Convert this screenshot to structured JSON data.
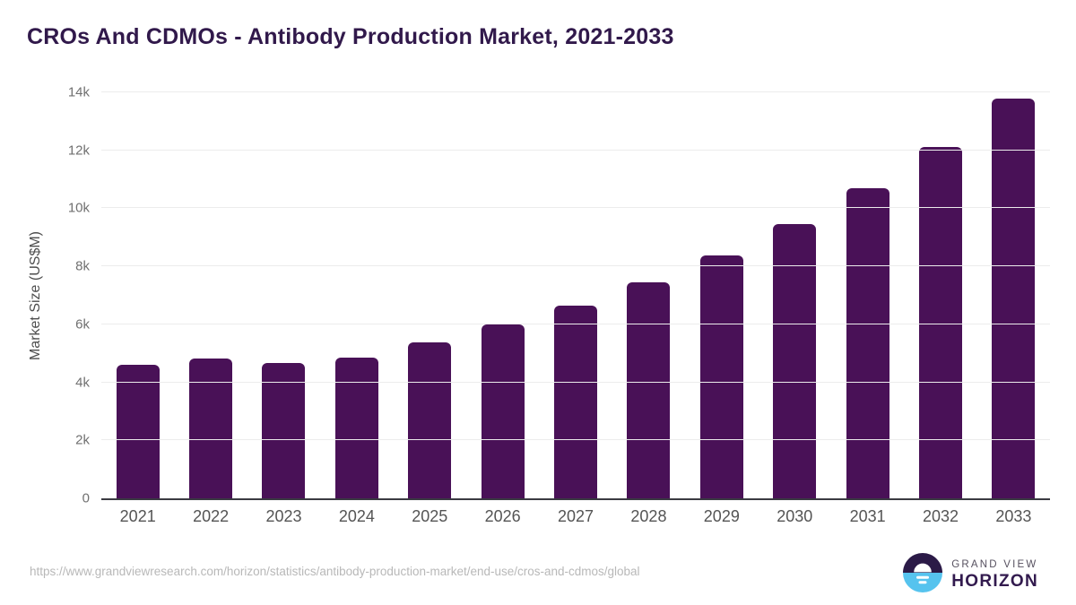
{
  "chart_data": {
    "type": "bar",
    "title": "CROs And CDMOs - Antibody Production Market, 2021-2033",
    "categories": [
      "2021",
      "2022",
      "2023",
      "2024",
      "2025",
      "2026",
      "2027",
      "2028",
      "2029",
      "2030",
      "2031",
      "2032",
      "2033"
    ],
    "values": [
      4620,
      4830,
      4680,
      4860,
      5390,
      6000,
      6650,
      7450,
      8390,
      9470,
      10680,
      12100,
      13780
    ],
    "xlabel": "",
    "ylabel": "Market Size (US$M)",
    "ylim": [
      0,
      14000
    ],
    "yticks": [
      0,
      2000,
      4000,
      6000,
      8000,
      10000,
      12000,
      14000
    ],
    "ytick_labels": [
      "0",
      "2k",
      "4k",
      "6k",
      "8k",
      "10k",
      "12k",
      "14k"
    ],
    "grid": "horizontal",
    "legend": "none",
    "bar_color": "#491157"
  },
  "colors": {
    "bar": "#491157",
    "title": "#31194b",
    "gridline": "#ececec",
    "axis_line": "#3a3a42",
    "tick_label": "#707070",
    "x_label": "#545454",
    "url_text": "#b8b8b8",
    "logo_dark": "#2b1a47",
    "logo_blue": "#56c3ee"
  },
  "footer": {
    "source_url": "https://www.grandviewresearch.com/horizon/statistics/antibody-production-market/end-use/cros-and-cdmos/global",
    "logo": {
      "line1": "GRAND VIEW",
      "line2": "HORIZON"
    }
  }
}
